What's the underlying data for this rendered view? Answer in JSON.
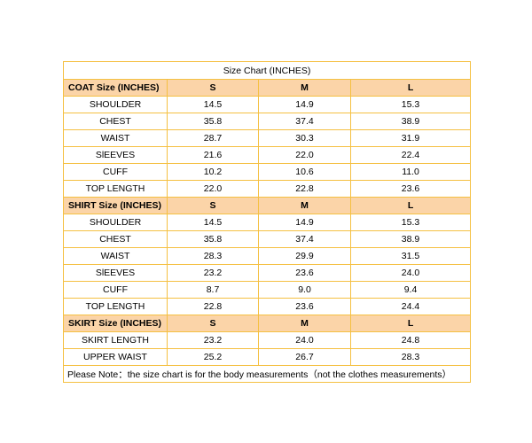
{
  "title": "Size Chart  (INCHES)",
  "sections": [
    {
      "label": "COAT Size  (INCHES)",
      "sizes": [
        "S",
        "M",
        "L"
      ],
      "rows": [
        {
          "name": "SHOULDER",
          "values": [
            "14.5",
            "14.9",
            "15.3"
          ]
        },
        {
          "name": "CHEST",
          "values": [
            "35.8",
            "37.4",
            "38.9"
          ]
        },
        {
          "name": "WAIST",
          "values": [
            "28.7",
            "30.3",
            "31.9"
          ]
        },
        {
          "name": "SlEEVES",
          "values": [
            "21.6",
            "22.0",
            "22.4"
          ]
        },
        {
          "name": "CUFF",
          "values": [
            "10.2",
            "10.6",
            "11.0"
          ]
        },
        {
          "name": "TOP LENGTH",
          "values": [
            "22.0",
            "22.8",
            "23.6"
          ]
        }
      ]
    },
    {
      "label": "SHIRT Size  (INCHES)",
      "sizes": [
        "S",
        "M",
        "L"
      ],
      "rows": [
        {
          "name": "SHOULDER",
          "values": [
            "14.5",
            "14.9",
            "15.3"
          ]
        },
        {
          "name": "CHEST",
          "values": [
            "35.8",
            "37.4",
            "38.9"
          ]
        },
        {
          "name": "WAIST",
          "values": [
            "28.3",
            "29.9",
            "31.5"
          ]
        },
        {
          "name": "SlEEVES",
          "values": [
            "23.2",
            "23.6",
            "24.0"
          ]
        },
        {
          "name": "CUFF",
          "values": [
            "8.7",
            "9.0",
            "9.4"
          ]
        },
        {
          "name": "TOP LENGTH",
          "values": [
            "22.8",
            "23.6",
            "24.4"
          ]
        }
      ]
    },
    {
      "label": "SKIRT Size  (INCHES)",
      "sizes": [
        "S",
        "M",
        "L"
      ],
      "rows": [
        {
          "name": "SKIRT LENGTH",
          "values": [
            "23.2",
            "24.0",
            "24.8"
          ]
        },
        {
          "name": "UPPER WAIST",
          "values": [
            "25.2",
            "26.7",
            "28.3"
          ]
        }
      ]
    }
  ],
  "note": "Please Note：the size chart is for the body measurements（not the clothes measurements）",
  "colors": {
    "border": "#f5c042",
    "header_fill": "#fbd4a8"
  }
}
